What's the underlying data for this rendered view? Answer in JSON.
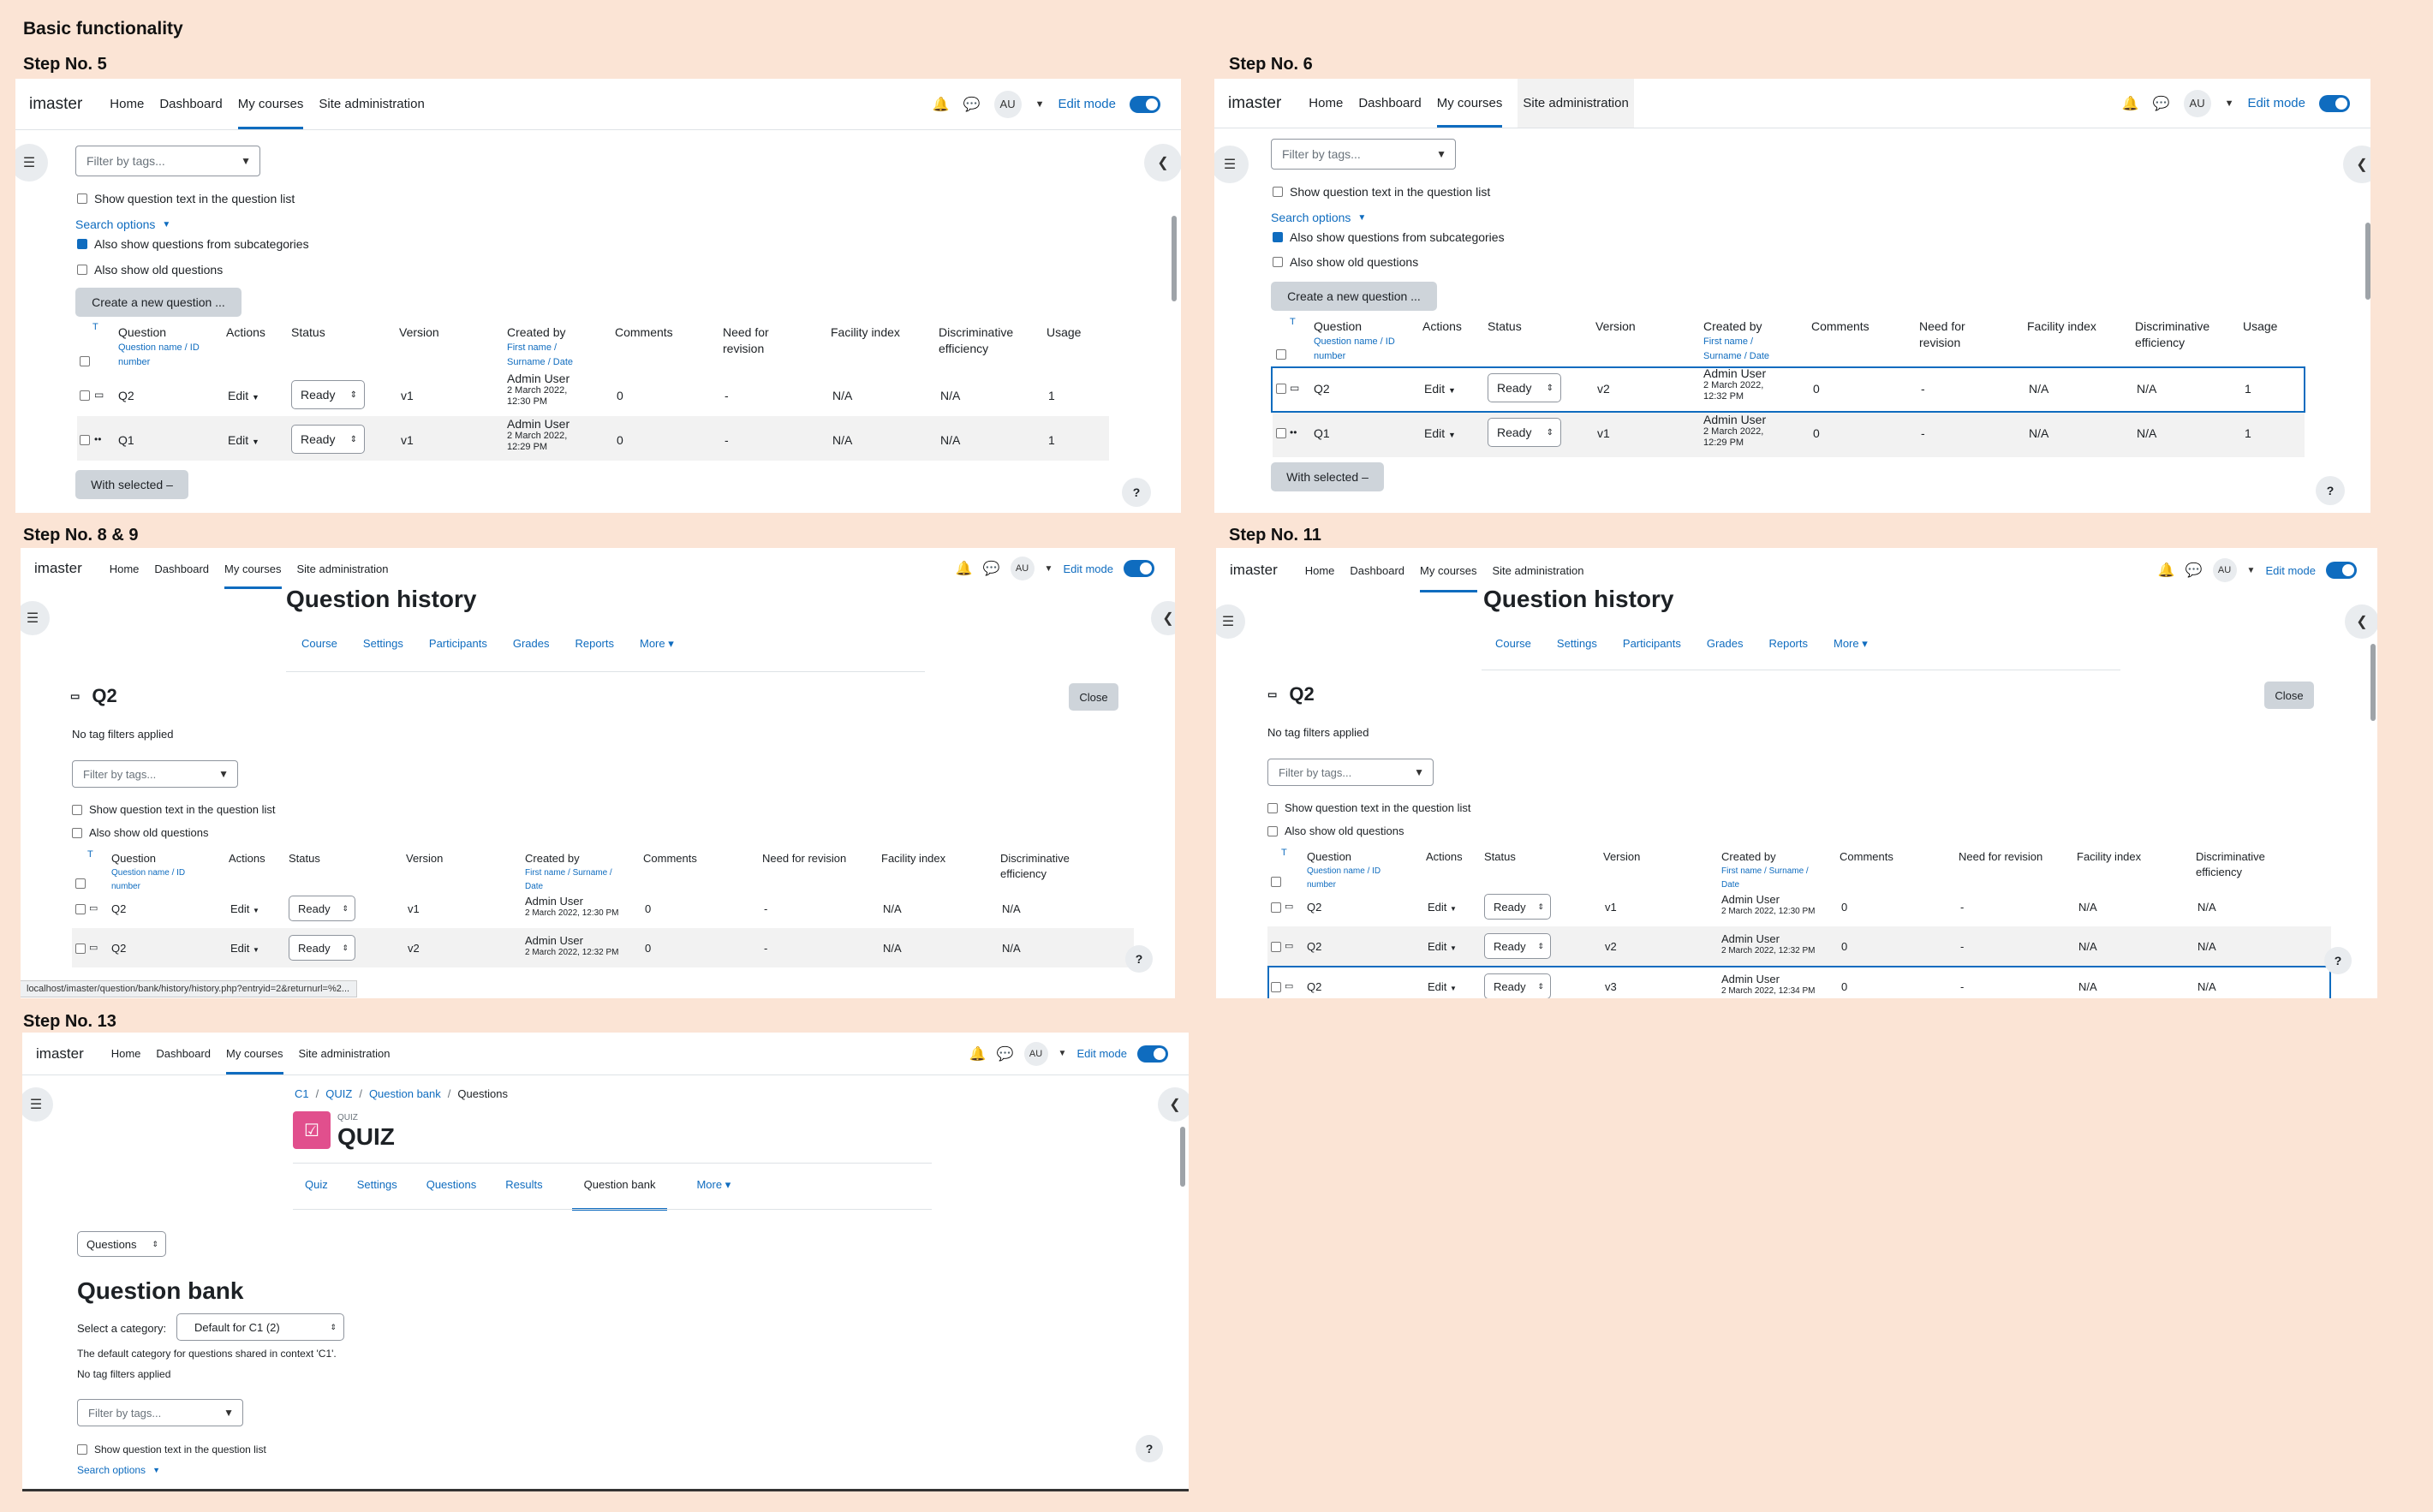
{
  "title": "Basic functionality",
  "step_labels": [
    "Step No. 5",
    "Step No. 6",
    "Step No. 8 & 9",
    "Step No. 11",
    "Step No. 13"
  ],
  "nav": {
    "brand": "imaster",
    "items": [
      "Home",
      "Dashboard",
      "My courses",
      "Site administration"
    ],
    "avatar": "AU",
    "edit_mode": "Edit mode"
  },
  "filter_placeholder": "Filter by tags...",
  "options": {
    "show_text": "Show question text in the question list",
    "search_options": "Search options",
    "subcategories": "Also show questions from subcategories",
    "old_questions": "Also show old questions"
  },
  "create_btn": "Create a new question ...",
  "with_selected": "With selected",
  "headers": {
    "t": "T",
    "question": "Question",
    "question_sub": "Question name / ID number",
    "actions": "Actions",
    "status": "Status",
    "version": "Version",
    "created_by": "Created by",
    "created_sub": "First name / Surname / Date",
    "comments": "Comments",
    "revision": "Need for revision",
    "facility": "Facility index",
    "discrim": "Discriminative efficiency",
    "usage": "Usage"
  },
  "bank_rows": [
    {
      "name": "Q2",
      "action": "Edit",
      "status": "Ready",
      "version": "v1",
      "creator": "Admin User",
      "date": "2 March 2022, 12:30 PM",
      "comments": "0",
      "revision": "-",
      "facility": "N/A",
      "discrim": "N/A",
      "usage": "1"
    },
    {
      "name": "Q1",
      "action": "Edit",
      "status": "Ready",
      "version": "v1",
      "creator": "Admin User",
      "date": "2 March 2022, 12:29 PM",
      "comments": "0",
      "revision": "-",
      "facility": "N/A",
      "discrim": "N/A",
      "usage": "1"
    }
  ],
  "bank_rows6": [
    {
      "name": "Q2",
      "action": "Edit",
      "status": "Ready",
      "version": "v2",
      "creator": "Admin User",
      "date": "2 March 2022, 12:32 PM",
      "comments": "0",
      "revision": "-",
      "facility": "N/A",
      "discrim": "N/A",
      "usage": "1"
    },
    {
      "name": "Q1",
      "action": "Edit",
      "status": "Ready",
      "version": "v1",
      "creator": "Admin User",
      "date": "2 March 2022, 12:29 PM",
      "comments": "0",
      "revision": "-",
      "facility": "N/A",
      "discrim": "N/A",
      "usage": "1"
    }
  ],
  "history": {
    "title": "Question history",
    "tabs": [
      "Course",
      "Settings",
      "Participants",
      "Grades",
      "Reports",
      "More"
    ],
    "qname": "Q2",
    "close": "Close",
    "no_tag": "No tag filters applied",
    "rows": [
      {
        "name": "Q2",
        "action": "Edit",
        "status": "Ready",
        "version": "v1",
        "creator": "Admin User",
        "date": "2 March 2022, 12:30 PM",
        "comments": "0",
        "revision": "-",
        "facility": "N/A",
        "discrim": "N/A"
      },
      {
        "name": "Q2",
        "action": "Edit",
        "status": "Ready",
        "version": "v2",
        "creator": "Admin User",
        "date": "2 March 2022, 12:32 PM",
        "comments": "0",
        "revision": "-",
        "facility": "N/A",
        "discrim": "N/A"
      },
      {
        "name": "Q2",
        "action": "Edit",
        "status": "Ready",
        "version": "v3",
        "creator": "Admin User",
        "date": "2 March 2022, 12:34 PM",
        "comments": "0",
        "revision": "-",
        "facility": "N/A",
        "discrim": "N/A"
      }
    ],
    "status_url": "localhost/imaster/question/bank/history/history.php?entryid=2&returnurl=%2..."
  },
  "quiz": {
    "breadcrumb": [
      "C1",
      "QUIZ",
      "Question bank",
      "Questions"
    ],
    "module_label": "QUIZ",
    "title": "QUIZ",
    "tabs": [
      "Quiz",
      "Settings",
      "Questions",
      "Results",
      "Question bank",
      "More"
    ],
    "questions_select": "Questions",
    "bank_title": "Question bank",
    "select_category": "Select a category:",
    "category_value": "Default for C1 (2)",
    "category_desc": "The default category for questions shared in context 'C1'.",
    "no_tag": "No tag filters applied"
  },
  "help": "?",
  "colors": {
    "accent": "#0f6cbf",
    "background": "#fbe4d5",
    "quiz_icon": "#e14f8d"
  }
}
